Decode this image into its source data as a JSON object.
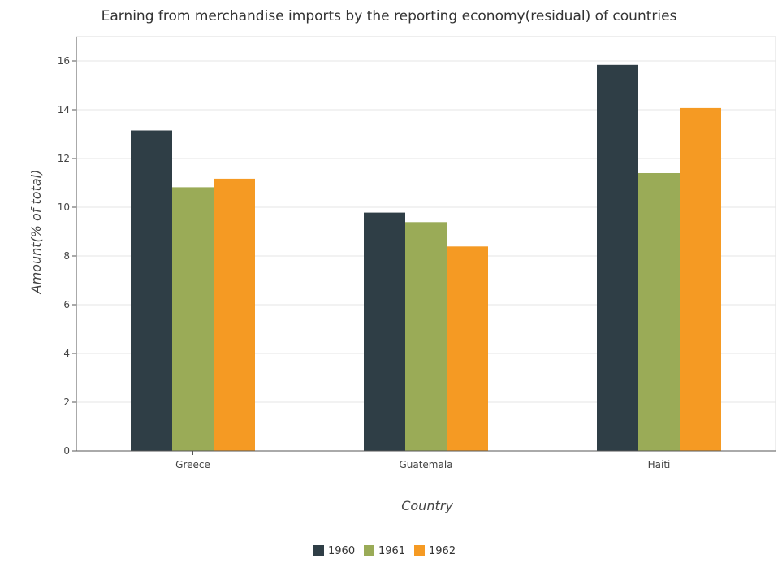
{
  "chart_data": {
    "type": "bar",
    "title": "Earning from merchandise imports by the reporting economy(residual) of countries",
    "xlabel": "Country",
    "ylabel": "Amount(% of total)",
    "categories": [
      "Greece",
      "Guatemala",
      "Haiti"
    ],
    "series": [
      {
        "name": "1960",
        "color": "#2f3e46",
        "values": [
          13.15,
          9.78,
          15.84
        ]
      },
      {
        "name": "1961",
        "color": "#9aab57",
        "values": [
          10.82,
          9.39,
          11.4
        ]
      },
      {
        "name": "1962",
        "color": "#f59a23",
        "values": [
          11.17,
          8.39,
          14.07
        ]
      }
    ],
    "ylim": [
      0,
      17
    ],
    "yticks": [
      0,
      2,
      4,
      6,
      8,
      10,
      12,
      14,
      16
    ],
    "grid": true,
    "legend_position": "bottom-center"
  }
}
